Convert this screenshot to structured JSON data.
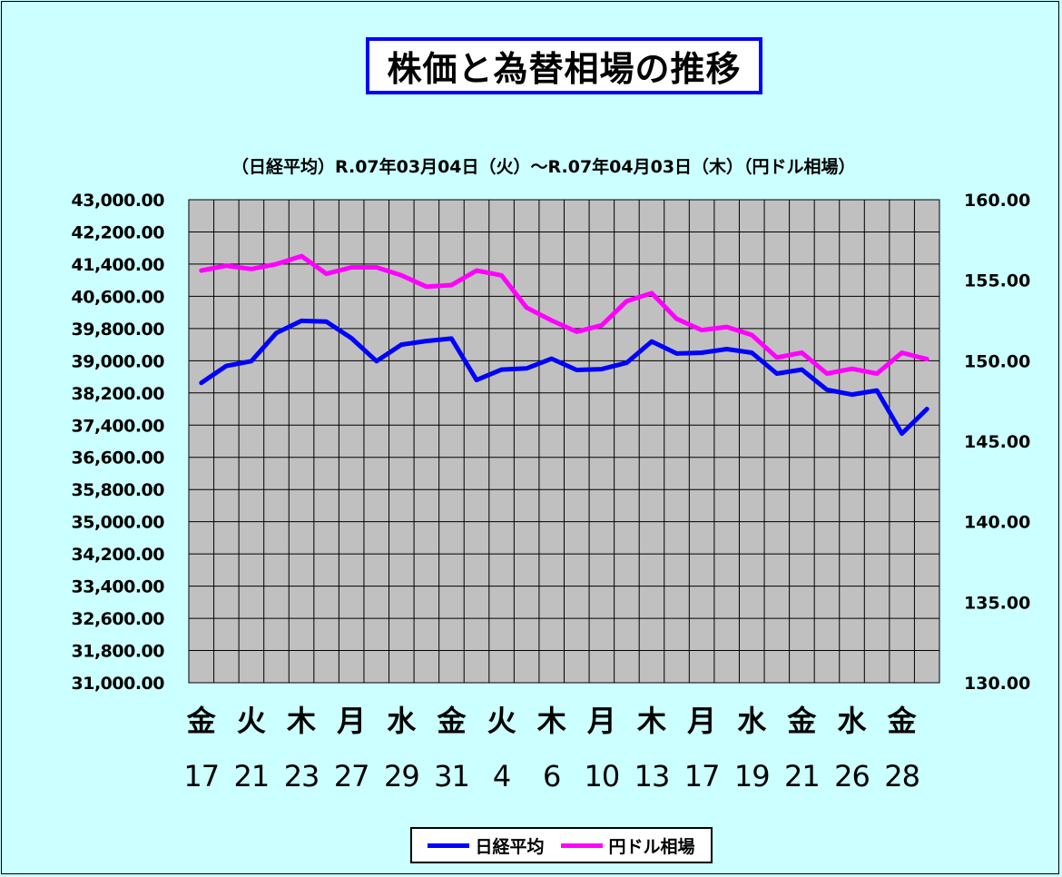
{
  "title": "株価と為替相場の推移",
  "subtitle": "（日経平均）R.07年03月04日（火）～R.07年04月03日（木）（円ドル相場）",
  "legend": {
    "nikkei": "日経平均",
    "fx": "円ドル相場"
  },
  "colors": {
    "nikkei": "#0000ff",
    "fx": "#ff00ff",
    "plot_bg": "#c0c0c0",
    "page_bg": "#ccffff"
  },
  "chart_data": {
    "type": "line",
    "left_axis": {
      "ylim": [
        31000,
        43000
      ],
      "ticks": [
        "43,000.00",
        "42,200.00",
        "41,400.00",
        "40,600.00",
        "39,800.00",
        "39,000.00",
        "38,200.00",
        "37,400.00",
        "36,600.00",
        "35,800.00",
        "35,000.00",
        "34,200.00",
        "33,400.00",
        "32,600.00",
        "31,800.00",
        "31,000.00"
      ]
    },
    "right_axis": {
      "ylim": [
        130,
        160
      ],
      "ticks": [
        "160.00",
        "155.00",
        "150.00",
        "145.00",
        "140.00",
        "135.00",
        "130.00"
      ]
    },
    "x_weekday_labels": [
      "金",
      "火",
      "木",
      "月",
      "水",
      "金",
      "火",
      "木",
      "月",
      "木",
      "月",
      "水",
      "金",
      "水",
      "金"
    ],
    "x_date_labels": [
      "17",
      "21",
      "23",
      "27",
      "29",
      "31",
      "4",
      "6",
      "10",
      "13",
      "17",
      "19",
      "21",
      "26",
      "28"
    ],
    "series": [
      {
        "name": "日経平均",
        "axis": "left",
        "values": [
          38450,
          38870,
          38990,
          39690,
          39990,
          39970,
          39560,
          38990,
          39400,
          39490,
          39550,
          38520,
          38780,
          38810,
          39050,
          38770,
          38790,
          38950,
          39480,
          39180,
          39200,
          39290,
          39200,
          38680,
          38780,
          38280,
          38160,
          38260,
          37190,
          37800
        ]
      },
      {
        "name": "円ドル相場",
        "axis": "right",
        "values": [
          155.6,
          155.9,
          155.7,
          156.0,
          156.5,
          155.4,
          155.8,
          155.8,
          155.3,
          154.6,
          154.7,
          155.6,
          155.3,
          153.3,
          152.5,
          151.8,
          152.2,
          153.7,
          154.2,
          152.6,
          151.9,
          152.1,
          151.6,
          150.2,
          150.5,
          149.2,
          149.5,
          149.2,
          150.5,
          150.1
        ]
      }
    ],
    "grid": true
  }
}
